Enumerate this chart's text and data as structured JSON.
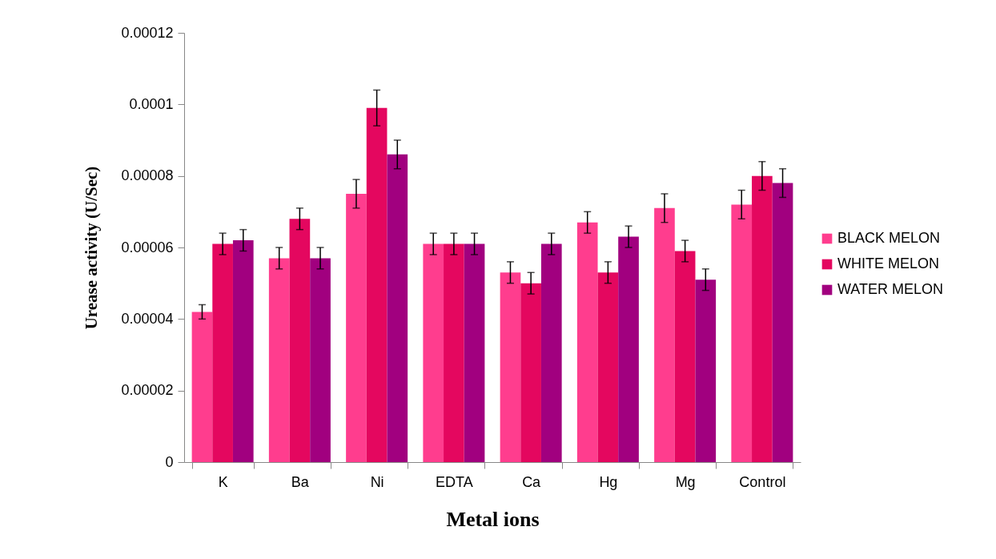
{
  "chart_data": {
    "type": "bar",
    "xlabel": "Metal ions",
    "ylabel": "Urease activity (U/Sec)",
    "categories": [
      "K",
      "Ba",
      "Ni",
      "EDTA",
      "Ca",
      "Hg",
      "Mg",
      "Control"
    ],
    "series": [
      {
        "name": "BLACK MELON",
        "color": "#ff3d8e",
        "values": [
          4.2e-05,
          5.7e-05,
          7.5e-05,
          6.1e-05,
          5.3e-05,
          6.7e-05,
          7.1e-05,
          7.2e-05
        ],
        "errors": [
          2e-06,
          3e-06,
          4e-06,
          3e-06,
          3e-06,
          3e-06,
          4e-06,
          4e-06
        ]
      },
      {
        "name": "WHITE MELON",
        "color": "#e4075f",
        "values": [
          6.1e-05,
          6.8e-05,
          9.9e-05,
          6.1e-05,
          5e-05,
          5.3e-05,
          5.9e-05,
          8e-05
        ],
        "errors": [
          3e-06,
          3e-06,
          5e-06,
          3e-06,
          3e-06,
          3e-06,
          3e-06,
          4e-06
        ]
      },
      {
        "name": "WATER MELON",
        "color": "#a1007f",
        "values": [
          6.2e-05,
          5.7e-05,
          8.6e-05,
          6.1e-05,
          6.1e-05,
          6.3e-05,
          5.1e-05,
          7.8e-05
        ],
        "errors": [
          3e-06,
          3e-06,
          4e-06,
          3e-06,
          3e-06,
          3e-06,
          3e-06,
          4e-06
        ]
      }
    ],
    "ylim": [
      0,
      0.00012
    ],
    "yticks": [
      0,
      {
        "value": 2e-05,
        "label": "0.00002"
      },
      {
        "value": 4e-05,
        "label": "0.00004"
      },
      {
        "value": 6e-05,
        "label": "0.00006"
      },
      {
        "value": 8e-05,
        "label": "0.00008"
      },
      0.0001,
      0.00012
    ],
    "grid": false,
    "legend": "right"
  }
}
